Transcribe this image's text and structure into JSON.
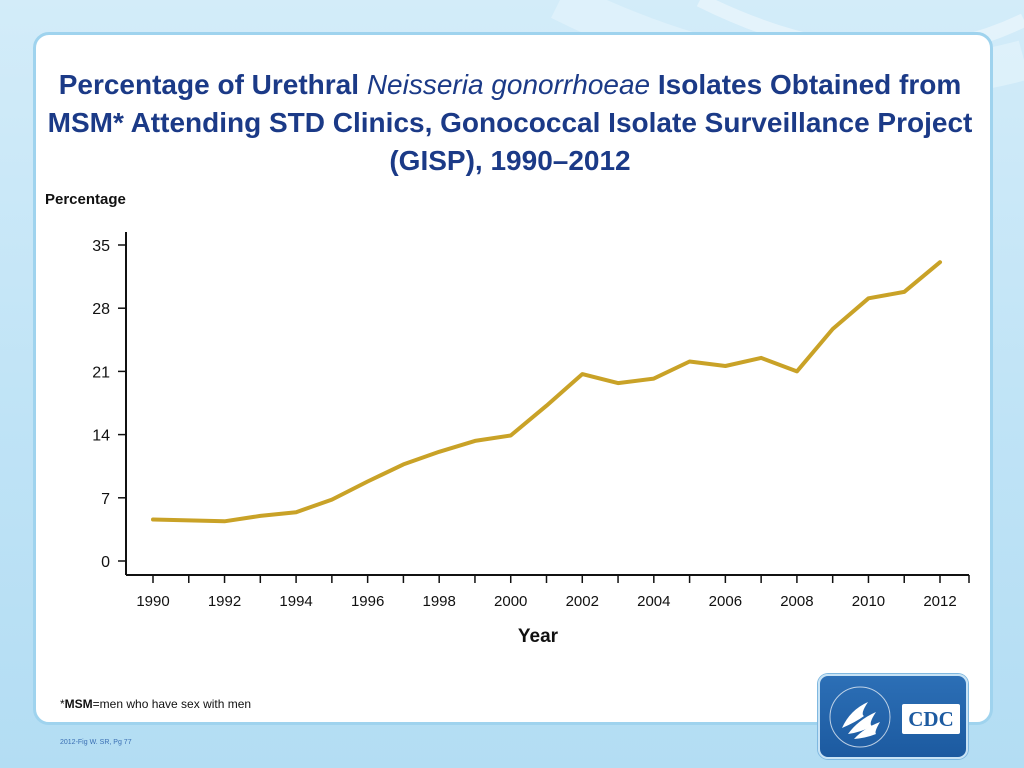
{
  "slide": {
    "title_part1": "Percentage of Urethral ",
    "title_italic": "Neisseria gonorrhoeae",
    "title_part2": " Isolates Obtained from MSM* Attending STD Clinics, Gonococcal Isolate Surveillance Project (GISP), 1990–2012",
    "footnote_marker": "*",
    "footnote_term": "MSM",
    "footnote_text": "=men who have sex with men",
    "source": "2012-Fig W.  SR, Pg 77",
    "logo_text": "CDC"
  },
  "colors": {
    "title": "#1b3a87",
    "line": "#c9a227",
    "axis": "#111111"
  },
  "chart_data": {
    "type": "line",
    "title": "Percentage of Urethral Neisseria gonorrhoeae Isolates Obtained from MSM* Attending STD Clinics, Gonococcal Isolate Surveillance Project (GISP), 1990–2012",
    "xlabel": "Year",
    "ylabel": "Percentage",
    "ylim": [
      0,
      35
    ],
    "yticks": [
      0,
      7,
      14,
      21,
      28,
      35
    ],
    "xticks": [
      1990,
      1992,
      1994,
      1996,
      1998,
      2000,
      2002,
      2004,
      2006,
      2008,
      2010,
      2012
    ],
    "x": [
      1990,
      1991,
      1992,
      1993,
      1994,
      1995,
      1996,
      1997,
      1998,
      1999,
      2000,
      2001,
      2002,
      2003,
      2004,
      2005,
      2006,
      2007,
      2008,
      2009,
      2010,
      2011,
      2012
    ],
    "series": [
      {
        "values": [
          4.6,
          4.5,
          4.4,
          5.0,
          5.4,
          6.8,
          8.8,
          10.7,
          12.1,
          13.3,
          13.9,
          17.2,
          20.7,
          19.7,
          20.2,
          22.1,
          21.6,
          22.5,
          21.0,
          25.7,
          29.1,
          29.8,
          33.1
        ]
      }
    ],
    "grid": false,
    "legend": "none"
  }
}
